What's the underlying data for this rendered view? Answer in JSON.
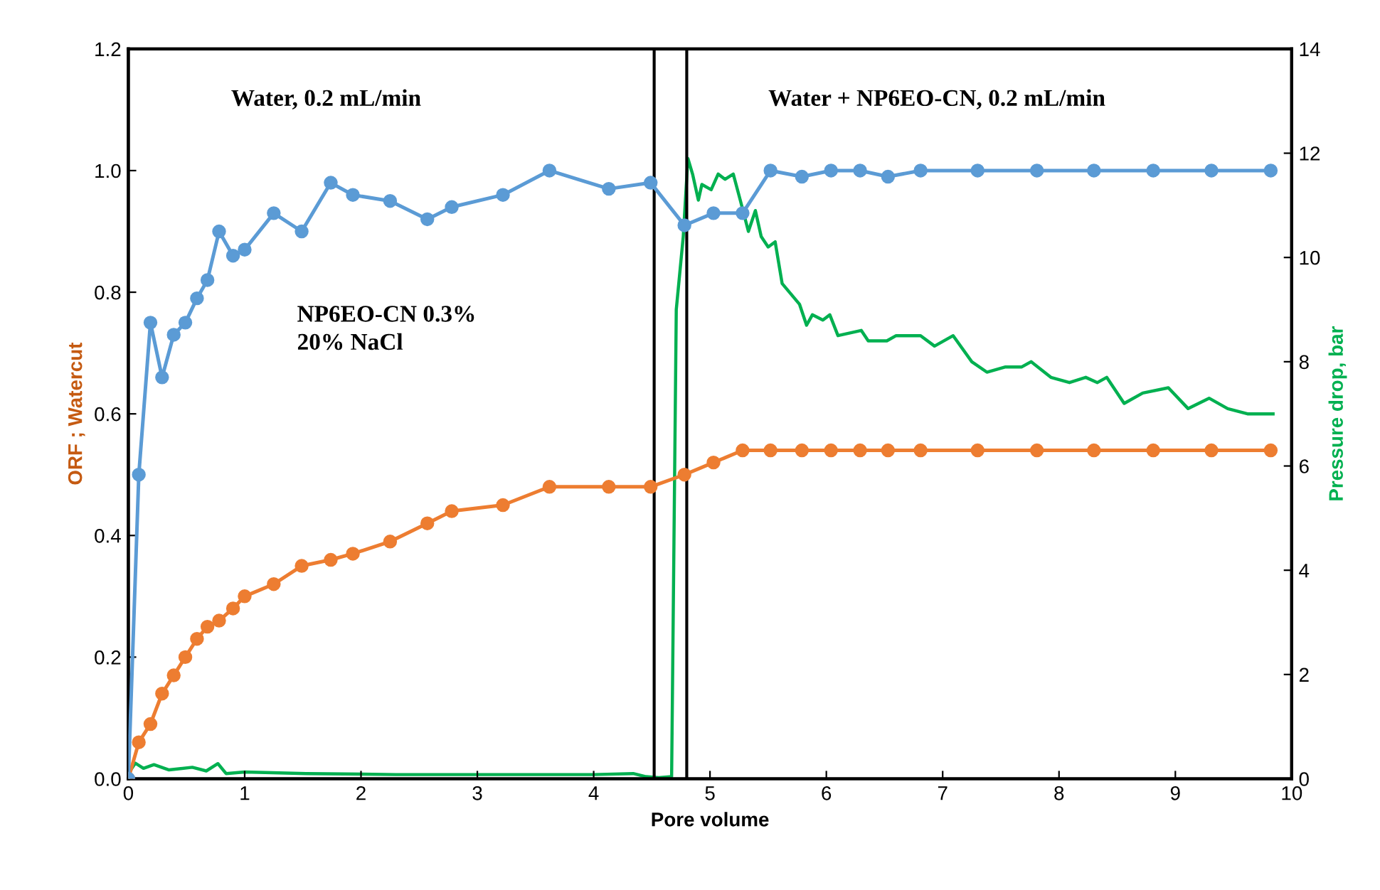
{
  "chart_data": {
    "type": "line",
    "xlabel": "Pore volume",
    "ylabel": "ORF ; Watercut",
    "y2label": "Pressure drop, bar",
    "annotations": [
      "Water, 0.2 mL/min",
      "Water + NP6EO-CN, 0.2 mL/min",
      "NP6EO-CN 0.3%\n20% NaCl"
    ],
    "xlim": [
      0,
      10
    ],
    "xticks": [
      0,
      1,
      2,
      3,
      4,
      5,
      6,
      7,
      8,
      9,
      10
    ],
    "ylim": [
      0,
      1.2
    ],
    "yticks": [
      {
        "value": 0,
        "label": "0.0"
      },
      {
        "value": 0.2,
        "label": "0.2"
      },
      {
        "value": 0.4,
        "label": "0.4"
      },
      {
        "value": 0.6,
        "label": "0.6"
      },
      {
        "value": 0.8,
        "label": "0.8"
      },
      {
        "value": 1.0,
        "label": "1.0"
      },
      {
        "value": 1.2,
        "label": "1.2"
      }
    ],
    "y2lim": [
      0,
      14
    ],
    "y2ticks": [
      0,
      2,
      4,
      6,
      8,
      10,
      12,
      14
    ],
    "grid": false,
    "legend": false,
    "ref_lines": [
      {
        "axis": "x",
        "value": 4.52,
        "color": "#000000",
        "line_style": "solid"
      },
      {
        "axis": "x",
        "value": 4.8,
        "color": "#000000",
        "line_style": "solid"
      }
    ],
    "series": [
      {
        "color": "#ed7d31",
        "marker": "circle",
        "x": [
          0,
          0.09,
          0.19,
          0.29,
          0.39,
          0.49,
          0.59,
          0.68,
          0.78,
          0.9,
          1.0,
          1.25,
          1.49,
          1.74,
          1.93,
          2.25,
          2.57,
          2.78,
          3.22,
          3.62,
          4.13,
          4.49,
          4.78,
          5.03,
          5.28,
          5.52,
          5.79,
          6.04,
          6.29,
          6.53,
          6.81,
          7.3,
          7.81,
          8.3,
          8.81,
          9.31,
          9.82
        ],
        "values": [
          0,
          0.06,
          0.09,
          0.14,
          0.17,
          0.2,
          0.23,
          0.25,
          0.26,
          0.28,
          0.3,
          0.32,
          0.35,
          0.36,
          0.37,
          0.39,
          0.42,
          0.44,
          0.45,
          0.48,
          0.48,
          0.48,
          0.5,
          0.52,
          0.54,
          0.54,
          0.54,
          0.54,
          0.54,
          0.54,
          0.54,
          0.54,
          0.54,
          0.54,
          0.54,
          0.54,
          0.54
        ]
      },
      {
        "color": "#5b9bd5",
        "marker": "circle",
        "x": [
          0,
          0.09,
          0.19,
          0.29,
          0.39,
          0.49,
          0.59,
          0.68,
          0.78,
          0.9,
          1.0,
          1.25,
          1.49,
          1.74,
          1.93,
          2.25,
          2.57,
          2.78,
          3.22,
          3.62,
          4.13,
          4.49,
          4.78,
          5.03,
          5.28,
          5.52,
          5.79,
          6.04,
          6.29,
          6.53,
          6.81,
          7.3,
          7.81,
          8.3,
          8.81,
          9.31,
          9.82
        ],
        "values": [
          0,
          0.5,
          0.75,
          0.66,
          0.73,
          0.75,
          0.79,
          0.82,
          0.9,
          0.86,
          0.87,
          0.93,
          0.9,
          0.98,
          0.96,
          0.95,
          0.92,
          0.94,
          0.96,
          1.0,
          0.97,
          0.98,
          0.91,
          0.93,
          0.93,
          1.0,
          0.99,
          1.0,
          1.0,
          0.99,
          1.0,
          1.0,
          1.0,
          1.0,
          1.0,
          1.0,
          1.0
        ]
      },
      {
        "color": "#00b050",
        "marker": "none",
        "axis": "y2",
        "x": [
          0,
          0.06,
          0.13,
          0.22,
          0.35,
          0.55,
          0.67,
          0.77,
          0.84,
          1.0,
          1.53,
          2.3,
          3.1,
          4.0,
          4.34,
          4.45,
          4.56,
          4.67,
          4.71,
          4.77,
          4.81,
          4.85,
          4.9,
          4.93,
          5.01,
          5.07,
          5.13,
          5.2,
          5.26,
          5.33,
          5.39,
          5.44,
          5.5,
          5.56,
          5.62,
          5.77,
          5.83,
          5.88,
          5.97,
          6.03,
          6.1,
          6.3,
          6.36,
          6.52,
          6.6,
          6.81,
          6.93,
          7.09,
          7.25,
          7.38,
          7.54,
          7.68,
          7.76,
          7.93,
          8.09,
          8.23,
          8.33,
          8.41,
          8.56,
          8.72,
          8.94,
          9.11,
          9.29,
          9.45,
          9.62,
          9.84
        ],
        "values": [
          0.1,
          0.3,
          0.2,
          0.27,
          0.17,
          0.22,
          0.15,
          0.29,
          0.1,
          0.13,
          0.1,
          0.08,
          0.08,
          0.08,
          0.1,
          0.04,
          0.02,
          0.04,
          9.0,
          10.4,
          11.9,
          11.6,
          11.1,
          11.4,
          11.3,
          11.6,
          11.5,
          11.6,
          11.1,
          10.5,
          10.9,
          10.4,
          10.2,
          10.3,
          9.5,
          9.1,
          8.7,
          8.9,
          8.8,
          8.9,
          8.5,
          8.6,
          8.4,
          8.4,
          8.5,
          8.5,
          8.3,
          8.5,
          8.0,
          7.8,
          7.9,
          7.9,
          8.0,
          7.7,
          7.6,
          7.7,
          7.6,
          7.7,
          7.2,
          7.4,
          7.5,
          7.1,
          7.3,
          7.1,
          7.0,
          7.0
        ]
      }
    ]
  }
}
